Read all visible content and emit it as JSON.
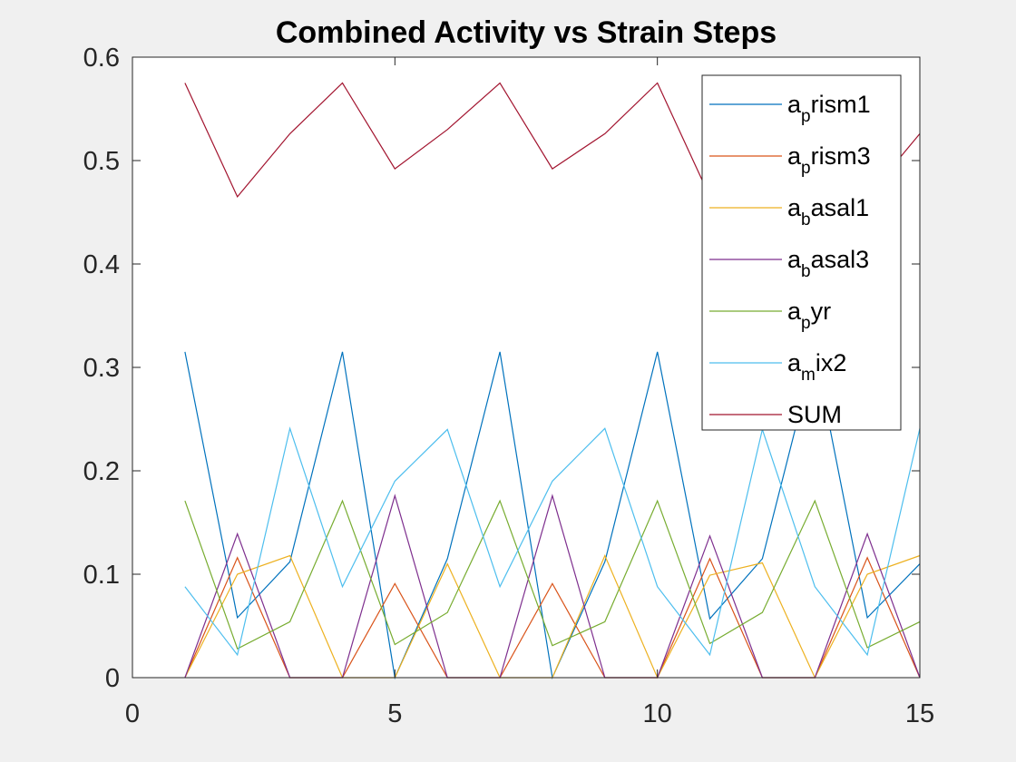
{
  "chart_data": {
    "type": "line",
    "title": "Combined Activity vs Strain Steps",
    "xlabel": "",
    "ylabel": "",
    "xlim": [
      0,
      15
    ],
    "ylim": [
      0,
      0.6
    ],
    "x_ticks": [
      "0",
      "5",
      "10",
      "15"
    ],
    "y_ticks": [
      "0",
      "0.1",
      "0.2",
      "0.3",
      "0.4",
      "0.5",
      "0.6"
    ],
    "grid": false,
    "legend_position": "top-right",
    "x": [
      1,
      2,
      3,
      4,
      5,
      6,
      7,
      8,
      9,
      10,
      11,
      12,
      13,
      14,
      15
    ],
    "series": [
      {
        "name": "a_prism1",
        "legend_main": "a",
        "legend_sub": "p",
        "legend_rest": "rism1",
        "color": "#0072BD",
        "values": [
          0.315,
          0.058,
          0.112,
          0.315,
          0.0,
          0.115,
          0.315,
          0.0,
          0.112,
          0.315,
          0.057,
          0.115,
          0.315,
          0.058,
          0.11
        ]
      },
      {
        "name": "a_prism3",
        "legend_main": "a",
        "legend_sub": "p",
        "legend_rest": "rism3",
        "color": "#D95319",
        "values": [
          0.0,
          0.116,
          0.0,
          0.0,
          0.091,
          0.0,
          0.0,
          0.091,
          0.0,
          0.0,
          0.115,
          0.0,
          0.0,
          0.116,
          0.0
        ]
      },
      {
        "name": "a_basal1",
        "legend_main": "a",
        "legend_sub": "b",
        "legend_rest": "asal1",
        "color": "#EDB120",
        "values": [
          0.0,
          0.1,
          0.118,
          0.0,
          0.0,
          0.11,
          0.0,
          0.0,
          0.118,
          0.0,
          0.099,
          0.111,
          0.0,
          0.1,
          0.118
        ]
      },
      {
        "name": "a_basal3",
        "legend_main": "a",
        "legend_sub": "b",
        "legend_rest": "asal3",
        "color": "#7E2F8E",
        "values": [
          0.0,
          0.139,
          0.0,
          0.0,
          0.176,
          0.0,
          0.0,
          0.176,
          0.0,
          0.0,
          0.137,
          0.0,
          0.0,
          0.139,
          0.0
        ]
      },
      {
        "name": "a_pyr",
        "legend_main": "a",
        "legend_sub": "p",
        "legend_rest": "yr",
        "color": "#77AC30",
        "values": [
          0.171,
          0.028,
          0.054,
          0.171,
          0.032,
          0.063,
          0.171,
          0.031,
          0.054,
          0.171,
          0.033,
          0.063,
          0.171,
          0.029,
          0.054
        ]
      },
      {
        "name": "a_mix2",
        "legend_main": "a",
        "legend_sub": "m",
        "legend_rest": "ix2",
        "color": "#4DBEEE",
        "values": [
          0.088,
          0.022,
          0.241,
          0.088,
          0.19,
          0.24,
          0.088,
          0.19,
          0.241,
          0.088,
          0.022,
          0.24,
          0.088,
          0.022,
          0.241
        ]
      },
      {
        "name": "SUM",
        "legend_main": "SUM",
        "legend_sub": "",
        "legend_rest": "",
        "color": "#A2142F",
        "values": [
          0.575,
          0.465,
          0.526,
          0.575,
          0.492,
          0.53,
          0.575,
          0.492,
          0.526,
          0.575,
          0.465,
          0.53,
          0.575,
          0.465,
          0.526
        ]
      }
    ]
  }
}
